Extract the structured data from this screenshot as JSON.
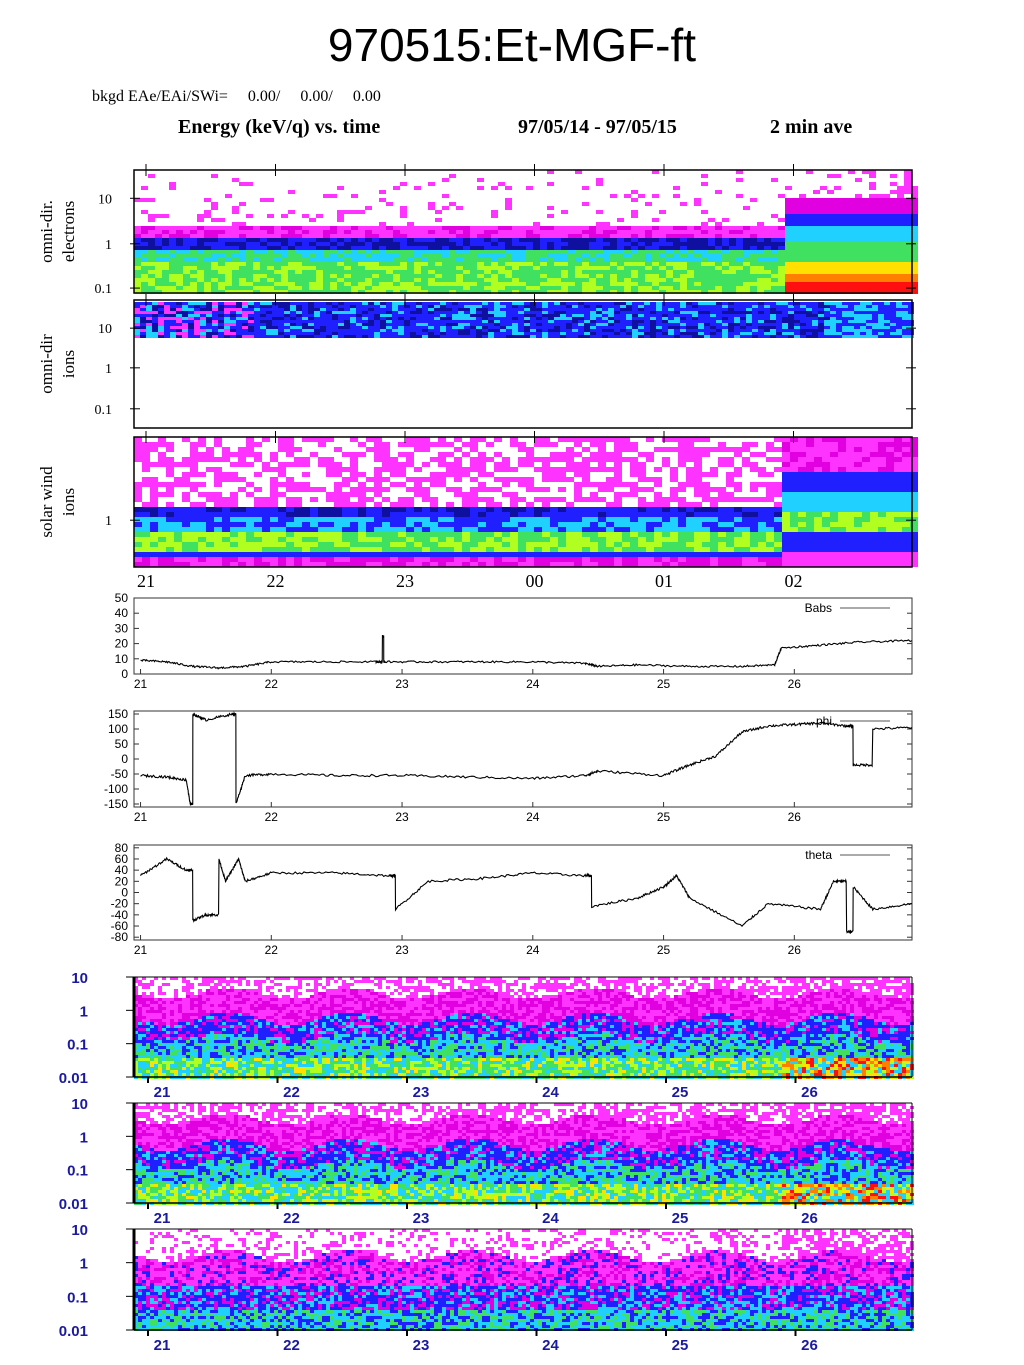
{
  "title": "970515:Et-MGF-ft",
  "bkgd_label": "bkgd EAe/EAi/SWi=     0.00/     0.00/     0.00",
  "header": {
    "left": "Energy (keV/q) vs. time",
    "range": "97/05/14 - 97/05/15",
    "avg": "2 min ave"
  },
  "colors": {
    "pink": "#ff33ff",
    "magenta": "#e000e0",
    "blue": "#2020ff",
    "navy": "#1010a0",
    "cyan": "#20d0ff",
    "green": "#40e060",
    "lime": "#b0ff20",
    "yellow": "#ffe000",
    "orange": "#ff8000",
    "red": "#ff1010",
    "axis_text_blue": "#1a1aa0"
  },
  "chart_data": [
    {
      "type": "heatmap",
      "ylabel": "omni-dir.\nelectrons",
      "yscale": "log",
      "ylim": [
        0.08,
        40
      ],
      "yticks": [
        "10",
        "1",
        "0.1"
      ],
      "description_of_bands": "low-energy green/yellow band, blue band near 1 keV, sparse pink above; enhanced red/yellow after 01:55",
      "x_range_hours": [
        21,
        26.9
      ]
    },
    {
      "type": "heatmap",
      "ylabel": "omni-dir\nions",
      "yscale": "log",
      "ylim": [
        0.05,
        40
      ],
      "yticks": [
        "10",
        "1",
        "0.1"
      ],
      "x_range_hours": [
        21,
        26.9
      ]
    },
    {
      "type": "heatmap",
      "ylabel": "solar wind\nions",
      "yscale": "log",
      "yticks": [
        "1"
      ],
      "xticks": [
        "21",
        "22",
        "23",
        "00",
        "01",
        "02"
      ],
      "x_range_hours": [
        21,
        26.9
      ]
    },
    {
      "type": "line",
      "series": [
        {
          "name": "Babs"
        }
      ],
      "ylim": [
        0,
        50
      ],
      "yticks": [
        "50",
        "40",
        "30",
        "20",
        "10",
        "0"
      ],
      "xticks": [
        "21",
        "22",
        "23",
        "24",
        "25",
        "26"
      ],
      "x": [
        21,
        21.2,
        21.4,
        21.6,
        21.8,
        22.0,
        22.4,
        22.8,
        22.85,
        22.86,
        22.87,
        23.2,
        23.6,
        24.0,
        24.4,
        24.5,
        24.8,
        25.2,
        25.6,
        25.85,
        25.9,
        26.2,
        26.5,
        26.9
      ],
      "y": [
        9,
        8,
        5,
        4,
        5,
        8,
        8,
        8,
        25,
        8,
        8,
        8,
        8,
        8,
        7,
        5,
        6,
        5,
        5,
        6,
        17,
        19,
        21,
        22
      ]
    },
    {
      "type": "line",
      "series": [
        {
          "name": "phi"
        }
      ],
      "ylim": [
        -160,
        160
      ],
      "yticks": [
        "150",
        "100",
        "50",
        "0",
        "-50",
        "-100",
        "-150"
      ],
      "xticks": [
        "21",
        "22",
        "23",
        "24",
        "25",
        "26"
      ],
      "x": [
        21,
        21.2,
        21.35,
        21.38,
        21.4,
        21.5,
        21.7,
        21.73,
        21.8,
        22.0,
        22.5,
        23.0,
        23.5,
        24.0,
        24.4,
        24.5,
        25.0,
        25.2,
        25.4,
        25.6,
        25.8,
        26.0,
        26.2,
        26.4,
        26.45,
        26.6,
        26.9
      ],
      "y": [
        -55,
        -60,
        -70,
        -150,
        150,
        130,
        150,
        -150,
        -55,
        -50,
        -55,
        -55,
        -60,
        -65,
        -55,
        -40,
        -55,
        -20,
        10,
        90,
        110,
        115,
        120,
        110,
        -20,
        100,
        105
      ]
    },
    {
      "type": "line",
      "series": [
        {
          "name": "theta"
        }
      ],
      "ylim": [
        -85,
        85
      ],
      "yticks": [
        "80",
        "60",
        "40",
        "20",
        "0",
        "-20",
        "-40",
        "-60",
        "-80"
      ],
      "xticks": [
        "21",
        "22",
        "23",
        "24",
        "25",
        "26"
      ],
      "x": [
        21,
        21.2,
        21.35,
        21.4,
        21.5,
        21.6,
        21.65,
        21.75,
        21.8,
        22.0,
        22.5,
        22.9,
        22.95,
        23.2,
        23.6,
        24.0,
        24.4,
        24.45,
        24.8,
        25.0,
        25.1,
        25.2,
        25.6,
        25.8,
        26.2,
        26.3,
        26.4,
        26.45,
        26.6,
        26.9
      ],
      "y": [
        30,
        60,
        40,
        -50,
        -40,
        60,
        20,
        60,
        20,
        35,
        35,
        30,
        -30,
        20,
        25,
        35,
        30,
        -25,
        -10,
        10,
        30,
        -10,
        -60,
        -20,
        -30,
        20,
        -70,
        10,
        -30,
        -20
      ]
    },
    {
      "type": "heatmap",
      "ylabel": "",
      "yscale": "log",
      "yticks": [
        "10",
        "1",
        "0.1",
        "0.01"
      ],
      "xticks": [
        "21",
        "22",
        "23",
        "24",
        "25",
        "26"
      ]
    },
    {
      "type": "heatmap",
      "ylabel": "",
      "yscale": "log",
      "yticks": [
        "10",
        "1",
        "0.1",
        "0.01"
      ],
      "xticks": [
        "21",
        "22",
        "23",
        "24",
        "25",
        "26"
      ]
    },
    {
      "type": "heatmap",
      "ylabel": "",
      "yscale": "log",
      "yticks": [
        "10",
        "1",
        "0.1",
        "0.01"
      ],
      "xticks": [
        "21",
        "22",
        "23",
        "24",
        "25",
        "26"
      ]
    }
  ]
}
